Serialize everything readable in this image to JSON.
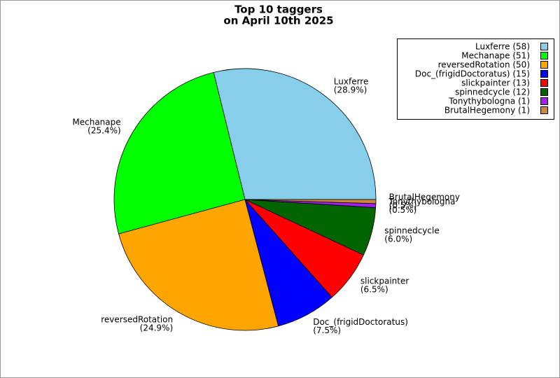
{
  "chart_data": {
    "type": "pie",
    "title": [
      "Top 10 taggers",
      "on April 10th 2025"
    ],
    "categories": [
      "Luxferre",
      "Mechanape",
      "reversedRotation",
      "Doc_(frigidDoctoratus)",
      "slickpainter",
      "spinnedcycle",
      "Tonythybologna",
      "BrutalHegemony"
    ],
    "values": [
      58,
      51,
      50,
      15,
      13,
      12,
      1,
      1
    ],
    "value_labels": [
      "(28.9%)",
      "(25.4%)",
      "(24.9%)",
      "(7.5%)",
      "(6.5%)",
      "(6.0%)",
      "(0.5%)",
      "(0.5%)"
    ],
    "legend_labels": [
      "Luxferre (58)",
      "Mechanape (51)",
      "reversedRotation (50)",
      "Doc_(frigidDoctoratus) (15)",
      "slickpainter (13)",
      "spinnedcycle (12)",
      "Tonythybologna (1)",
      "BrutalHegemony (1)"
    ],
    "colors": [
      "#87ceeb",
      "#00ff00",
      "#ffa500",
      "#0000ff",
      "#ff0000",
      "#006400",
      "#a020f0",
      "#cd853f"
    ]
  }
}
